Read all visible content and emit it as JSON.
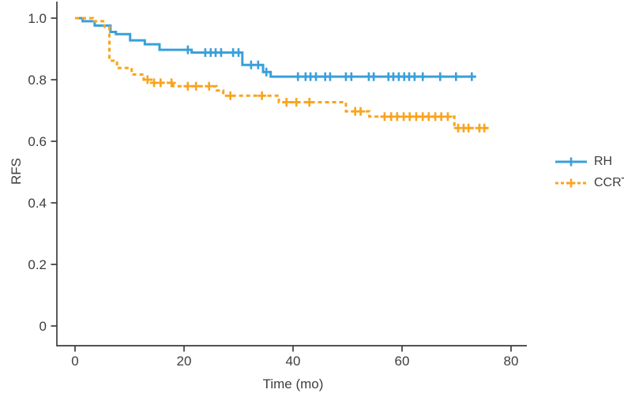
{
  "figure": {
    "background": "#ffffff",
    "axis_color": "#3d3d3d",
    "tick_label_color": "#3d3d3d"
  },
  "chart_data": {
    "type": "line",
    "subtype": "kaplan-meier-step",
    "title": "",
    "xlabel": "Time (mo)",
    "ylabel": "RFS",
    "xlim": [
      0,
      83
    ],
    "ylim": [
      0,
      1.0
    ],
    "x_ticks": [
      0,
      20,
      40,
      60,
      80
    ],
    "x_tick_labels": [
      "0",
      "20",
      "40",
      "60",
      "80"
    ],
    "y_ticks": [
      0,
      0.2,
      0.4,
      0.6,
      0.8,
      1.0
    ],
    "y_tick_labels": [
      "0",
      "0.2",
      "0.4",
      "0.6",
      "0.8",
      "1.0"
    ],
    "grid": false,
    "legend_position": "right-center",
    "series": [
      {
        "name": "RH",
        "color": "#38A0DB",
        "line_style": "solid",
        "steps": [
          [
            0,
            1.0
          ],
          [
            1.4,
            0.99
          ],
          [
            3.6,
            0.976
          ],
          [
            6.5,
            0.955
          ],
          [
            7.5,
            0.948
          ],
          [
            10.1,
            0.928
          ],
          [
            12.8,
            0.915
          ],
          [
            15.5,
            0.897
          ],
          [
            21.4,
            0.888
          ],
          [
            30.7,
            0.848
          ],
          [
            34.5,
            0.825
          ],
          [
            35.9,
            0.81
          ]
        ],
        "end_time": 73.5,
        "final_value": 0.81,
        "censor_times": [
          20.7,
          23.9,
          24.9,
          25.8,
          26.8,
          29.0,
          30.0,
          32.3,
          33.6,
          35.1,
          40.9,
          42.3,
          43.2,
          44.2,
          45.9,
          46.8,
          49.7,
          50.7,
          53.9,
          54.8,
          57.5,
          58.4,
          59.4,
          60.4,
          61.3,
          62.3,
          63.8,
          67.0,
          69.9,
          72.8
        ]
      },
      {
        "name": "CCRT",
        "color": "#F9A41E",
        "line_style": "dashed",
        "steps": [
          [
            0,
            1.0
          ],
          [
            3.3,
            0.99
          ],
          [
            5.4,
            0.972
          ],
          [
            6.3,
            0.862
          ],
          [
            7.7,
            0.838
          ],
          [
            10.4,
            0.817
          ],
          [
            12.6,
            0.8
          ],
          [
            14.0,
            0.79
          ],
          [
            18.0,
            0.779
          ],
          [
            26.0,
            0.765
          ],
          [
            27.2,
            0.748
          ],
          [
            37.4,
            0.727
          ],
          [
            49.7,
            0.697
          ],
          [
            54.0,
            0.68
          ],
          [
            69.6,
            0.643
          ]
        ],
        "end_time": 76.1,
        "final_value": 0.64,
        "censor_times": [
          13.3,
          14.5,
          15.7,
          17.7,
          20.7,
          22.2,
          24.6,
          28.5,
          34.3,
          38.8,
          40.6,
          43.0,
          51.4,
          52.4,
          56.8,
          58.0,
          59.1,
          60.3,
          61.4,
          62.6,
          63.8,
          64.9,
          66.1,
          67.2,
          68.4,
          70.3,
          71.3,
          72.2,
          74.2,
          75.1
        ]
      }
    ]
  }
}
